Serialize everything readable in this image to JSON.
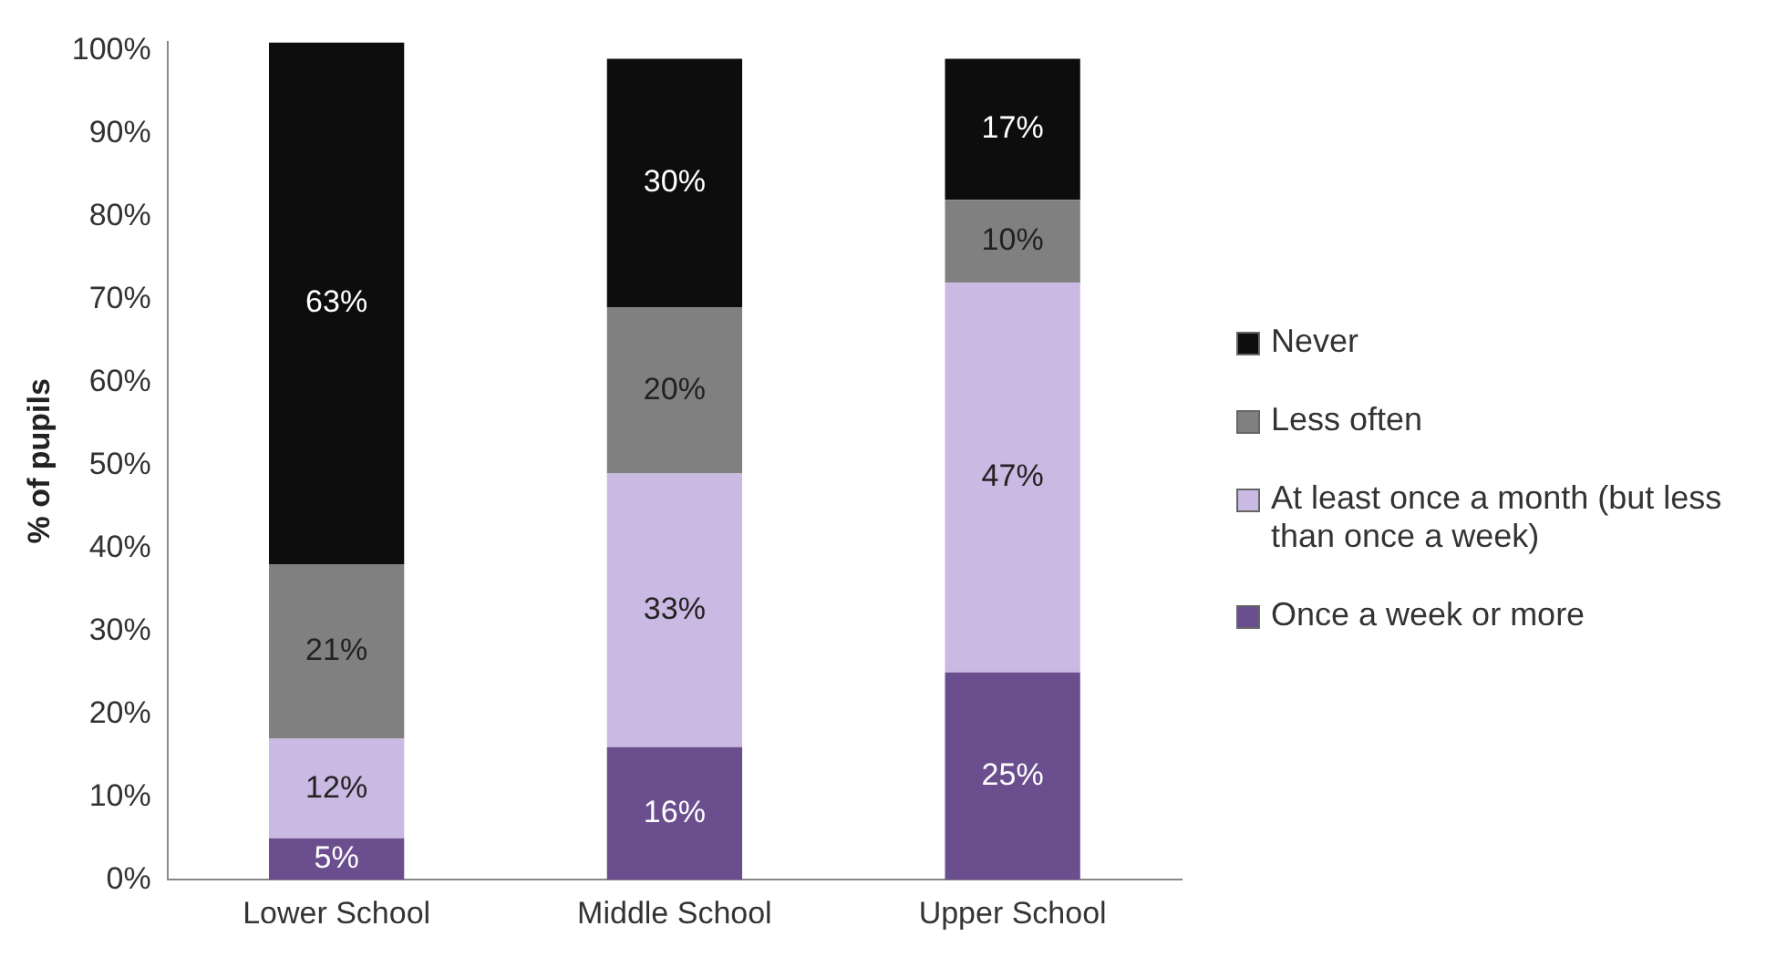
{
  "chart_data": {
    "type": "bar",
    "stacked": true,
    "ylabel": "% of pupils",
    "categories": [
      "Lower School",
      "Middle School",
      "Upper School"
    ],
    "series": [
      {
        "name": "Once a week or more",
        "color": "#6a4e8e",
        "values": [
          5,
          16,
          25
        ],
        "value_labels": [
          "5%",
          "16%",
          "25%"
        ]
      },
      {
        "name": "At least once a month (but less than once a week)",
        "color": "#c9b9e3",
        "values": [
          12,
          33,
          47
        ],
        "value_labels": [
          "12%",
          "33%",
          "47%"
        ]
      },
      {
        "name": "Less often",
        "color": "#808080",
        "values": [
          21,
          20,
          10
        ],
        "value_labels": [
          "21%",
          "20%",
          "10%"
        ]
      },
      {
        "name": "Never",
        "color": "#0d0d0d",
        "values": [
          63,
          30,
          17
        ],
        "value_labels": [
          "63%",
          "30%",
          "17%"
        ]
      }
    ],
    "ylim": [
      0,
      101
    ],
    "yticks": [
      {
        "value": 0,
        "label": "0%"
      },
      {
        "value": 10,
        "label": "10%"
      },
      {
        "value": 20,
        "label": "20%"
      },
      {
        "value": 30,
        "label": "30%"
      },
      {
        "value": 40,
        "label": "40%"
      },
      {
        "value": 50,
        "label": "50%"
      },
      {
        "value": 60,
        "label": "60%"
      },
      {
        "value": 70,
        "label": "70%"
      },
      {
        "value": 80,
        "label": "80%"
      },
      {
        "value": 90,
        "label": "90%"
      },
      {
        "value": 100,
        "label": "100%"
      }
    ],
    "grid": false,
    "legend": "right"
  }
}
